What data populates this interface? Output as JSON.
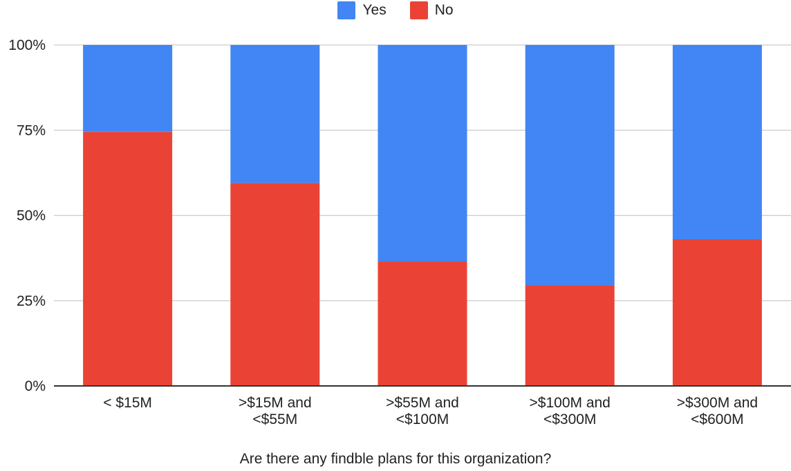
{
  "chart_data": {
    "type": "bar",
    "stacked": true,
    "categories": [
      "< $15M",
      ">$15M and <$55M",
      ">$55M and <$100M",
      ">$100M and <$300M",
      ">$300M and <$600M"
    ],
    "category_lines": [
      [
        "< $15M"
      ],
      [
        ">$15M and",
        "<$55M"
      ],
      [
        ">$55M and",
        "<$100M"
      ],
      [
        ">$100M and",
        "<$300M"
      ],
      [
        ">$300M and",
        "<$600M"
      ]
    ],
    "series": [
      {
        "name": "No",
        "color": "#ea4335",
        "values": [
          74.5,
          59.5,
          36.5,
          29.5,
          43
        ]
      },
      {
        "name": "Yes",
        "color": "#4285f4",
        "values": [
          25.5,
          40.5,
          63.5,
          70.5,
          57
        ]
      }
    ],
    "legend": [
      {
        "name": "Yes",
        "color": "#4285f4"
      },
      {
        "name": "No",
        "color": "#ea4335"
      }
    ],
    "legend_position": "top",
    "title": "",
    "xlabel": "Are there any findble plans for this organization?",
    "ylabel": "",
    "ylim": [
      0,
      100
    ],
    "yticks": [
      "0%",
      "25%",
      "50%",
      "75%",
      "100%"
    ],
    "ytick_values": [
      0,
      25,
      50,
      75,
      100
    ],
    "grid": true
  }
}
